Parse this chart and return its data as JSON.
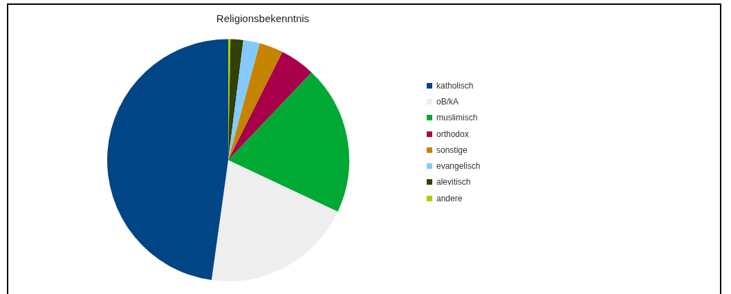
{
  "chart_data": {
    "type": "pie",
    "title": "Religionsbekenntnis",
    "categories": [
      "katholisch",
      "oB/kA",
      "muslimisch",
      "orthodox",
      "sonstige",
      "evangelisch",
      "alevitisch",
      "andere"
    ],
    "values": [
      47.8,
      20.2,
      19.9,
      4.7,
      3.2,
      2.2,
      1.7,
      0.3
    ],
    "colors": [
      "#004586",
      "#eeeeee",
      "#00a933",
      "#a8004a",
      "#c58400",
      "#83caff",
      "#314004",
      "#aecf00"
    ],
    "legend": "right"
  }
}
